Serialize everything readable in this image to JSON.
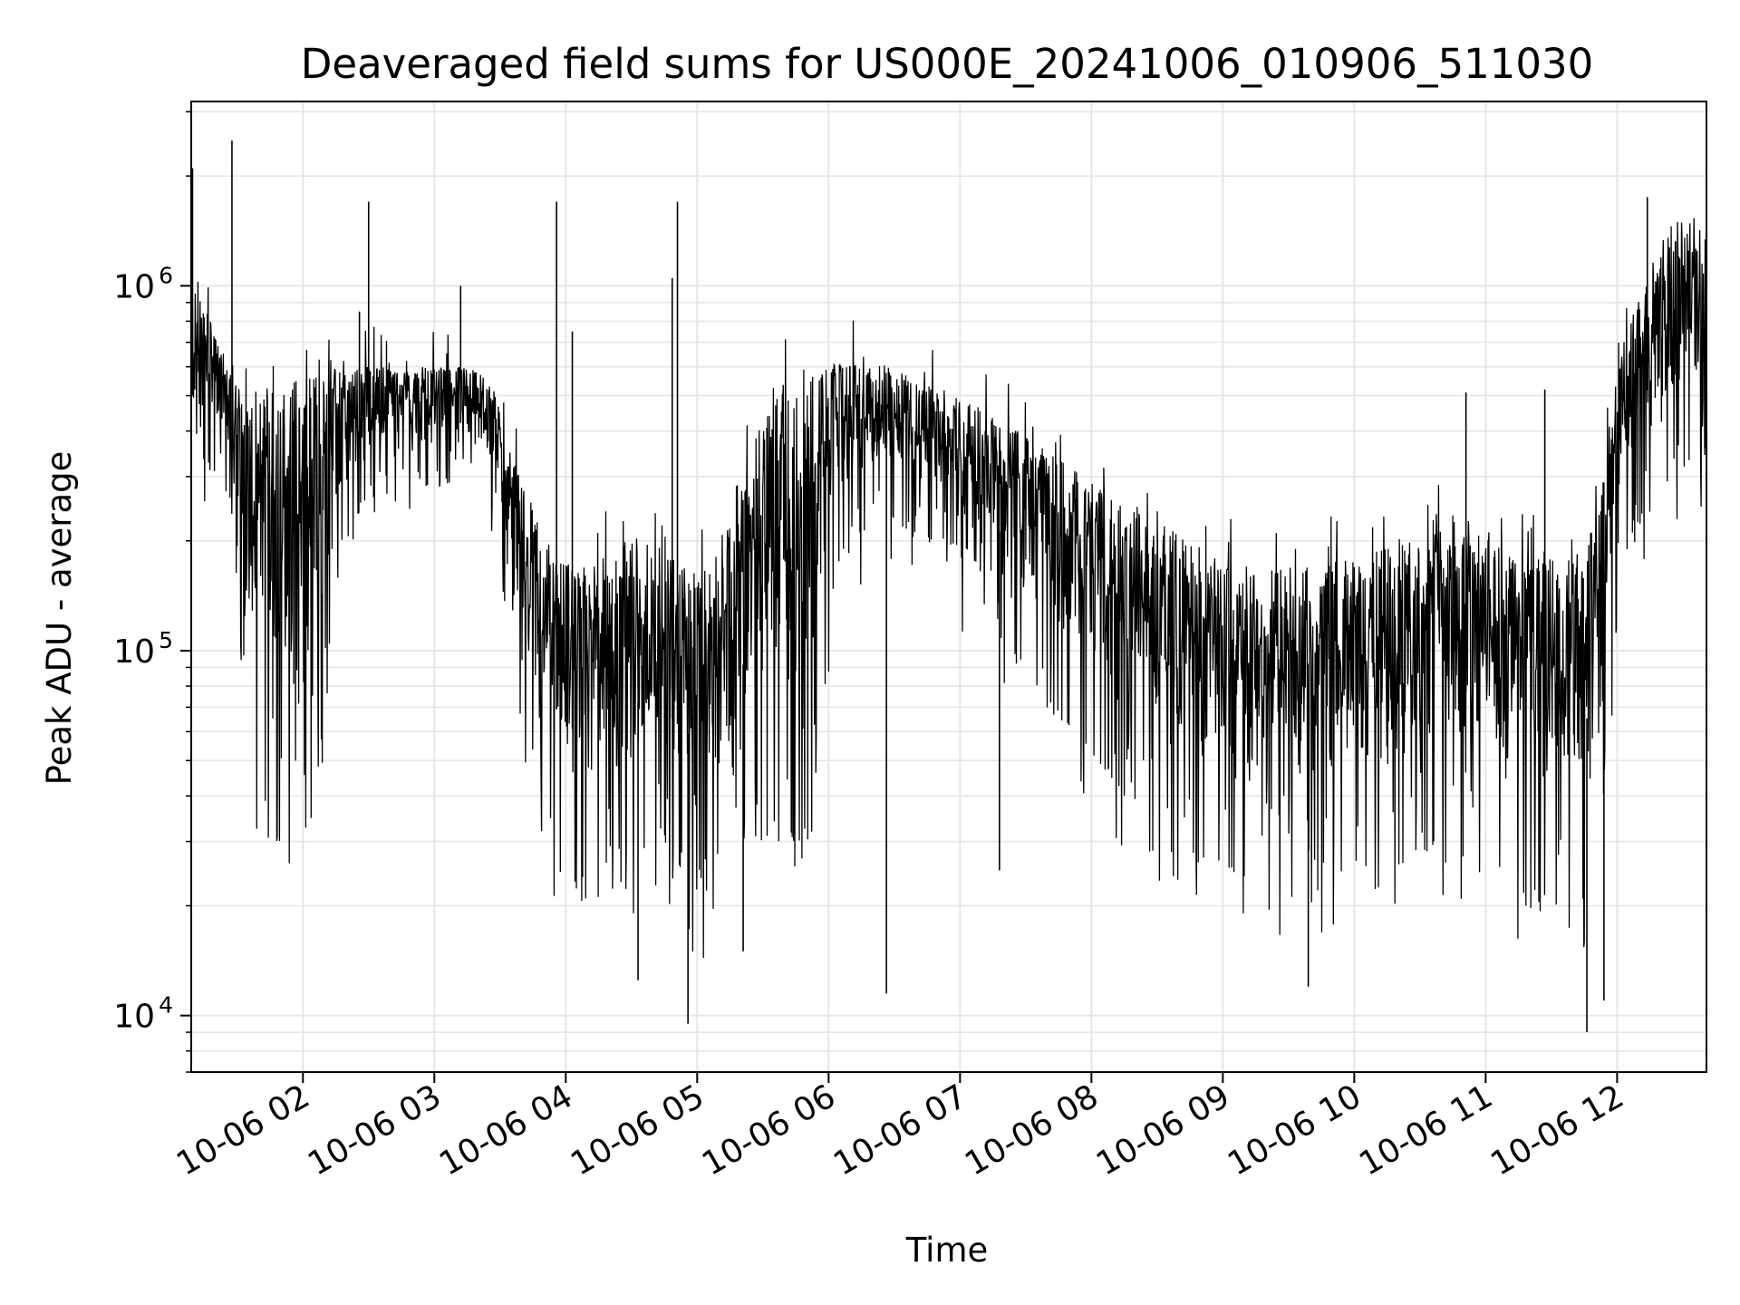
{
  "chart_data": {
    "type": "line",
    "title": "Deaveraged field sums for US000E_20241006_010906_511030",
    "xlabel": "Time",
    "ylabel": "Peak ADU - average",
    "yscale": "log",
    "ylim": [
      7000,
      3200000
    ],
    "xlim_hours": [
      1.15,
      12.68
    ],
    "grid": true,
    "line_color": "#000000",
    "grid_color": "#e6e6e6",
    "x_ticks": [
      {
        "value": 2,
        "label": "10-06 02"
      },
      {
        "value": 3,
        "label": "10-06 03"
      },
      {
        "value": 4,
        "label": "10-06 04"
      },
      {
        "value": 5,
        "label": "10-06 05"
      },
      {
        "value": 6,
        "label": "10-06 06"
      },
      {
        "value": 7,
        "label": "10-06 07"
      },
      {
        "value": 8,
        "label": "10-06 08"
      },
      {
        "value": 9,
        "label": "10-06 09"
      },
      {
        "value": 10,
        "label": "10-06 10"
      },
      {
        "value": 11,
        "label": "10-06 11"
      },
      {
        "value": 12,
        "label": "10-06 12"
      }
    ],
    "y_ticks": [
      {
        "value": 10000,
        "base": "10",
        "exp": "4"
      },
      {
        "value": 100000,
        "base": "10",
        "exp": "5"
      },
      {
        "value": 1000000,
        "base": "10",
        "exp": "6"
      }
    ],
    "series": [
      {
        "x": [
          1.15,
          1.25,
          1.35,
          1.45,
          1.55,
          1.65,
          1.75,
          1.85,
          1.95,
          2.05,
          2.15,
          2.25,
          2.35,
          2.45,
          2.55,
          2.65,
          2.75,
          2.85,
          2.95,
          3.05,
          3.15,
          3.25,
          3.35,
          3.45,
          3.55,
          3.65,
          3.75,
          3.85,
          3.95,
          4.05,
          4.15,
          4.25,
          4.35,
          4.45,
          4.55,
          4.65,
          4.75,
          4.85,
          4.95,
          5.05,
          5.15,
          5.25,
          5.35,
          5.45,
          5.55,
          5.65,
          5.75,
          5.85,
          5.95,
          6.05,
          6.15,
          6.25,
          6.35,
          6.45,
          6.55,
          6.65,
          6.75,
          6.85,
          6.95,
          7.05,
          7.15,
          7.25,
          7.35,
          7.45,
          7.55,
          7.65,
          7.75,
          7.85,
          7.95,
          8.05,
          8.15,
          8.25,
          8.35,
          8.45,
          8.55,
          8.65,
          8.75,
          8.85,
          8.95,
          9.05,
          9.15,
          9.25,
          9.35,
          9.45,
          9.55,
          9.65,
          9.75,
          9.85,
          9.95,
          10.05,
          10.15,
          10.25,
          10.35,
          10.45,
          10.55,
          10.65,
          10.75,
          10.85,
          10.95,
          11.05,
          11.15,
          11.25,
          11.35,
          11.45,
          11.55,
          11.65,
          11.75,
          11.85,
          11.95,
          12.05,
          12.15,
          12.25,
          12.35,
          12.45,
          12.55,
          12.65
        ],
        "low": [
          250000,
          280000,
          300000,
          260000,
          70000,
          45000,
          35000,
          28000,
          25000,
          30000,
          60000,
          120000,
          200000,
          250000,
          280000,
          300000,
          310000,
          300000,
          290000,
          280000,
          290000,
          300000,
          300000,
          240000,
          160000,
          80000,
          45000,
          30000,
          25000,
          22000,
          20000,
          20000,
          21000,
          22000,
          25000,
          28000,
          25000,
          22000,
          20000,
          20000,
          22000,
          25000,
          28000,
          30000,
          30000,
          30000,
          30000,
          30000,
          60000,
          150000,
          200000,
          210000,
          220000,
          230000,
          220000,
          210000,
          200000,
          190000,
          170000,
          140000,
          120000,
          110000,
          100000,
          90000,
          80000,
          70000,
          65000,
          60000,
          55000,
          50000,
          45000,
          40000,
          38000,
          35000,
          32000,
          30000,
          28000,
          27000,
          26000,
          25000,
          24000,
          24000,
          23000,
          23000,
          22000,
          22000,
          22000,
          23000,
          24000,
          24000,
          25000,
          25000,
          26000,
          27000,
          28000,
          30000,
          28000,
          26000,
          25000,
          24000,
          22000,
          20000,
          20000,
          20000,
          20000,
          20000,
          21000,
          22000,
          80000,
          180000,
          220000,
          240000,
          260000,
          300000,
          330000,
          340000
        ],
        "high": [
          1000000,
          900000,
          700000,
          600000,
          500000,
          520000,
          550000,
          560000,
          570000,
          580000,
          590000,
          600000,
          600000,
          600000,
          600000,
          600000,
          600000,
          600000,
          600000,
          600000,
          600000,
          600000,
          580000,
          520000,
          400000,
          300000,
          250000,
          200000,
          180000,
          170000,
          170000,
          180000,
          190000,
          200000,
          210000,
          200000,
          190000,
          180000,
          170000,
          170000,
          190000,
          230000,
          300000,
          400000,
          500000,
          550000,
          560000,
          580000,
          600000,
          620000,
          620000,
          620000,
          610000,
          600000,
          580000,
          560000,
          540000,
          520000,
          500000,
          480000,
          460000,
          440000,
          420000,
          400000,
          380000,
          360000,
          340000,
          320000,
          300000,
          280000,
          260000,
          250000,
          240000,
          230000,
          220000,
          210000,
          200000,
          190000,
          180000,
          180000,
          175000,
          170000,
          170000,
          170000,
          170000,
          170000,
          170000,
          180000,
          180000,
          185000,
          190000,
          195000,
          200000,
          200000,
          210000,
          220000,
          230000,
          230000,
          220000,
          200000,
          190000,
          180000,
          180000,
          180000,
          180000,
          180000,
          190000,
          250000,
          450000,
          700000,
          900000,
          1200000,
          1400000,
          1500000,
          1500000,
          1500000
        ],
        "spikes": [
          {
            "x": 1.16,
            "y": 2100000
          },
          {
            "x": 1.46,
            "y": 2500000
          },
          {
            "x": 2.5,
            "y": 1700000
          },
          {
            "x": 2.43,
            "y": 850000
          },
          {
            "x": 3.2,
            "y": 1000000
          },
          {
            "x": 3.93,
            "y": 1700000
          },
          {
            "x": 4.05,
            "y": 750000
          },
          {
            "x": 4.85,
            "y": 1700000
          },
          {
            "x": 4.81,
            "y": 1050000
          },
          {
            "x": 4.93,
            "y": 9500
          },
          {
            "x": 6.44,
            "y": 11500
          },
          {
            "x": 7.3,
            "y": 25000
          },
          {
            "x": 9.65,
            "y": 12000
          },
          {
            "x": 11.77,
            "y": 9000
          },
          {
            "x": 11.9,
            "y": 11000
          },
          {
            "x": 12.23,
            "y": 1750000
          },
          {
            "x": 11.45,
            "y": 520000
          },
          {
            "x": 10.85,
            "y": 510000
          },
          {
            "x": 5.35,
            "y": 15000
          },
          {
            "x": 4.55,
            "y": 12500
          }
        ]
      }
    ]
  }
}
